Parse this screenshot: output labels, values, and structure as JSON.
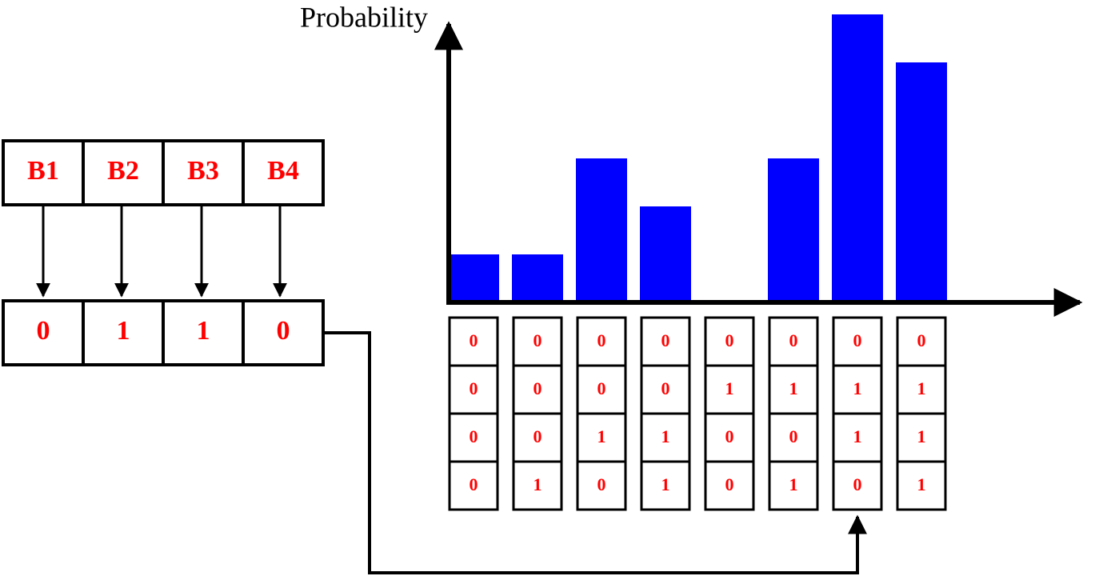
{
  "axis_label": "Probability",
  "header": [
    "B1",
    "B2",
    "B3",
    "B4"
  ],
  "bits": [
    "0",
    "1",
    "1",
    "0"
  ],
  "bars": [
    1,
    1,
    3,
    2,
    0,
    3,
    6,
    5
  ],
  "columns": [
    [
      "0",
      "0",
      "0",
      "0"
    ],
    [
      "0",
      "0",
      "0",
      "1"
    ],
    [
      "0",
      "0",
      "1",
      "0"
    ],
    [
      "0",
      "0",
      "1",
      "1"
    ],
    [
      "0",
      "1",
      "0",
      "0"
    ],
    [
      "0",
      "1",
      "0",
      "1"
    ],
    [
      "0",
      "1",
      "1",
      "0"
    ],
    [
      "0",
      "1",
      "1",
      "1"
    ]
  ]
}
